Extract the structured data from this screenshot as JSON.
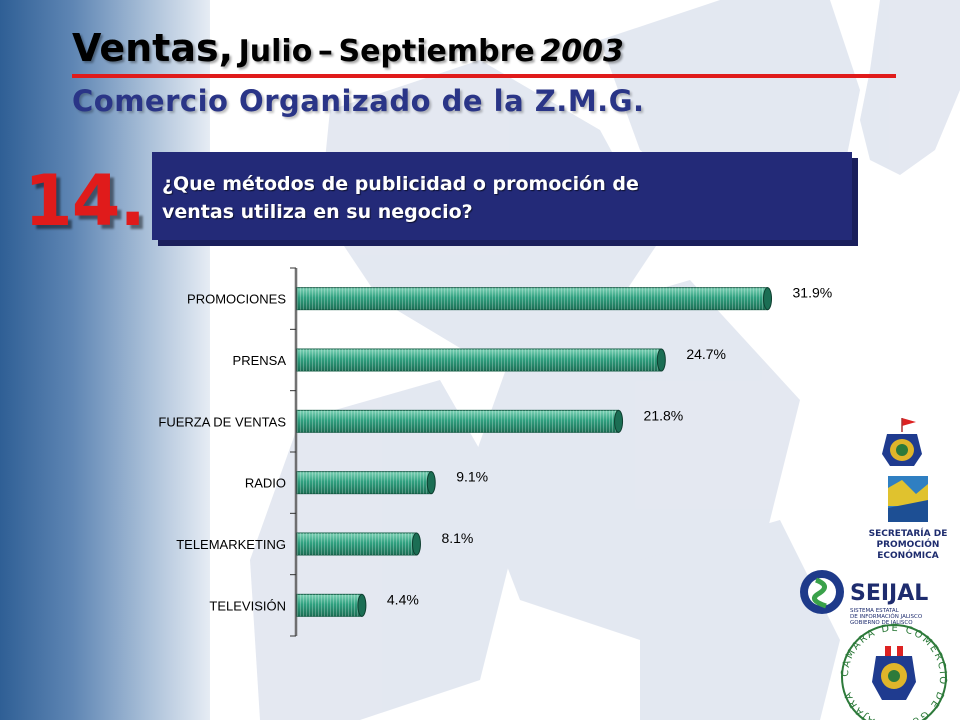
{
  "header": {
    "title_part1": "Ventas,",
    "title_part2": "Julio",
    "title_dash": "–",
    "title_part3": "Septiembre",
    "title_year": "2003",
    "subtitle": "Comercio Organizado de la Z.M.G."
  },
  "question": {
    "number": "14.",
    "line1": "¿Que métodos de publicidad o promoción de",
    "line2": "ventas utiliza en su negocio?"
  },
  "logos": {
    "secretaria_line1": "SECRETARÍA DE",
    "secretaria_line2": "PROMOCIÓN",
    "secretaria_line3": "ECONÓMICA",
    "seijal_name": "SEIJAL",
    "seijal_line1": "SISTEMA ESTATAL",
    "seijal_line2": "DE INFORMACIÓN JALISCO",
    "seijal_line3": "GOBIERNO DE JALISCO",
    "camara_text": "CAMARA DE COMERCIO DE GUADALAJARA"
  },
  "colors": {
    "bar": "#2fa07f",
    "bar_dark": "#1b6e54",
    "accent_red": "#e01b1b",
    "navy": "#232a78"
  },
  "chart_data": {
    "type": "bar",
    "orientation": "horizontal",
    "categories": [
      "PROMOCIONES",
      "PRENSA",
      "FUERZA DE VENTAS",
      "RADIO",
      "TELEMARKETING",
      "TELEVISIÓN"
    ],
    "values": [
      31.9,
      24.7,
      21.8,
      9.1,
      8.1,
      4.4
    ],
    "data_labels": [
      "31.9%",
      "24.7%",
      "21.8%",
      "9.1%",
      "8.1%",
      "4.4%"
    ],
    "xlim": [
      0,
      32
    ],
    "grid": false,
    "legend": "none"
  }
}
